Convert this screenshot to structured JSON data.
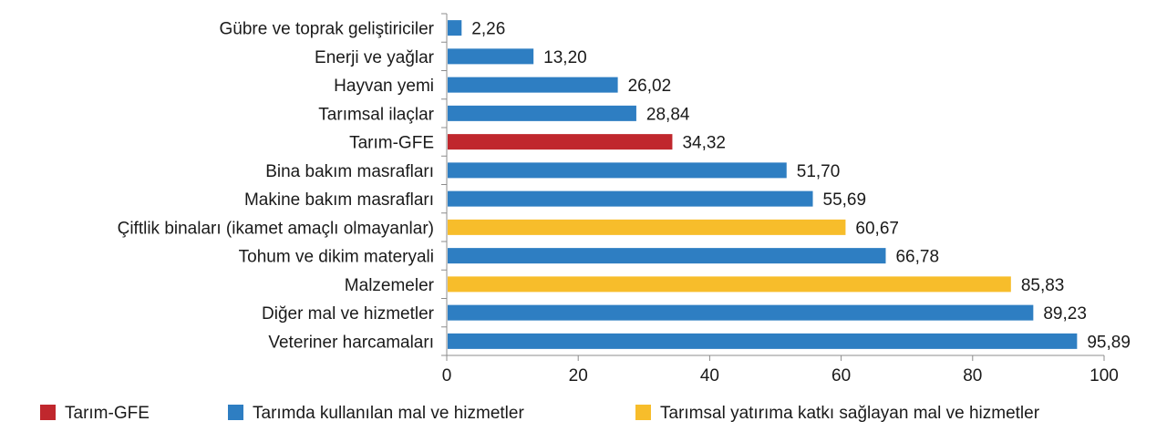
{
  "chart_data": {
    "type": "bar",
    "orientation": "horizontal",
    "categories": [
      "Gübre ve toprak geliştiriciler",
      "Enerji ve yağlar",
      "Hayvan yemi",
      "Tarımsal ilaçlar",
      "Tarım-GFE",
      "Bina bakım masrafları",
      "Makine bakım masrafları",
      "Çiftlik binaları (ikamet amaçlı olmayanlar)",
      "Tohum ve dikim materyali",
      "Malzemeler",
      "Diğer mal ve hizmetler",
      "Veteriner harcamaları"
    ],
    "values": [
      2.26,
      13.2,
      26.02,
      28.84,
      34.32,
      51.7,
      55.69,
      60.67,
      66.78,
      85.83,
      89.23,
      95.89
    ],
    "value_labels": [
      "2,26",
      "13,20",
      "26,02",
      "28,84",
      "34,32",
      "51,70",
      "55,69",
      "60,67",
      "66,78",
      "85,83",
      "89,23",
      "95,89"
    ],
    "groups": [
      1,
      1,
      1,
      1,
      0,
      1,
      1,
      2,
      1,
      2,
      1,
      1
    ],
    "legend": [
      {
        "label": "Tarım-GFE",
        "color": "#c0272d"
      },
      {
        "label": "Tarımda kullanılan mal ve hizmetler",
        "color": "#2e7ec2"
      },
      {
        "label": "Tarımsal yatırıma katkı sağlayan mal ve hizmetler",
        "color": "#f7bd2b"
      }
    ],
    "xlim": [
      0,
      100
    ],
    "xticks": [
      0,
      20,
      40,
      60,
      80,
      100
    ],
    "legend_position": "bottom",
    "grid": false
  }
}
